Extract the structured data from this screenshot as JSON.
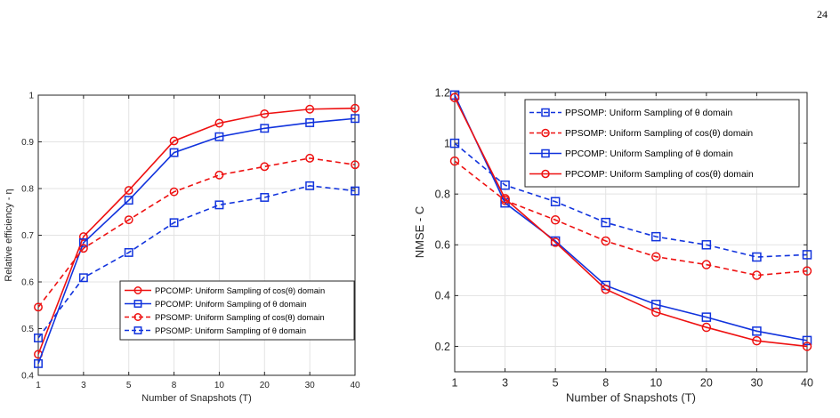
{
  "page_number": "24",
  "colors": {
    "red": "#ee1111",
    "blue": "#1133dd",
    "grid": "#e3e3e3",
    "axis": "#262626"
  },
  "chart_data": [
    {
      "type": "line",
      "categories": [
        "1",
        "3",
        "5",
        "8",
        "10",
        "20",
        "30",
        "40"
      ],
      "xlabel": "Number of Snapshots (T)",
      "ylabel": "Relative efficiency - η",
      "ylim": [
        0.4,
        1
      ],
      "yticks": [
        "0.4",
        "0.5",
        "0.6",
        "0.7",
        "0.8",
        "0.9",
        "1"
      ],
      "grid": true,
      "legend_position": "bottom-right",
      "series": [
        {
          "name": "PPCOMP: Uniform Sampling of cos(θ) domain",
          "color": "#ee1111",
          "dashed": false,
          "marker": "circle",
          "values": [
            0.445,
            0.697,
            0.796,
            0.902,
            0.94,
            0.96,
            0.97,
            0.972
          ]
        },
        {
          "name": "PPCOMP: Uniform Sampling of θ domain",
          "color": "#1133dd",
          "dashed": false,
          "marker": "square",
          "values": [
            0.425,
            0.684,
            0.775,
            0.877,
            0.911,
            0.929,
            0.941,
            0.95
          ]
        },
        {
          "name": "PPSOMP: Uniform Sampling of cos(θ) domain",
          "color": "#ee1111",
          "dashed": true,
          "marker": "circle",
          "values": [
            0.546,
            0.672,
            0.733,
            0.793,
            0.829,
            0.847,
            0.865,
            0.851
          ]
        },
        {
          "name": "PPSOMP: Uniform Sampling of θ domain",
          "color": "#1133dd",
          "dashed": true,
          "marker": "square",
          "values": [
            0.48,
            0.609,
            0.663,
            0.727,
            0.765,
            0.781,
            0.806,
            0.795
          ]
        }
      ]
    },
    {
      "type": "line",
      "categories": [
        "1",
        "3",
        "5",
        "8",
        "10",
        "20",
        "30",
        "40"
      ],
      "xlabel": "Number of Snapshots (T)",
      "ylabel": "NMSE - C",
      "ylim": [
        0.1,
        1.2
      ],
      "yticks": [
        "0.2",
        "0.4",
        "0.6",
        "0.8",
        "1",
        "1.2"
      ],
      "grid": true,
      "legend_position": "top-right",
      "series": [
        {
          "name": "PPSOMP: Uniform Sampling of θ domain",
          "color": "#1133dd",
          "dashed": true,
          "marker": "square",
          "values": [
            1.0,
            0.835,
            0.77,
            0.688,
            0.632,
            0.6,
            0.552,
            0.561
          ]
        },
        {
          "name": "PPSOMP: Uniform Sampling of cos(θ) domain",
          "color": "#ee1111",
          "dashed": true,
          "marker": "circle",
          "values": [
            0.93,
            0.775,
            0.698,
            0.615,
            0.553,
            0.522,
            0.48,
            0.497
          ]
        },
        {
          "name": "PPCOMP: Uniform Sampling of θ domain",
          "color": "#1133dd",
          "dashed": false,
          "marker": "square",
          "values": [
            1.19,
            0.765,
            0.615,
            0.44,
            0.365,
            0.315,
            0.26,
            0.223
          ]
        },
        {
          "name": "PPCOMP: Uniform Sampling of cos(θ) domain",
          "color": "#ee1111",
          "dashed": false,
          "marker": "circle",
          "values": [
            1.18,
            0.782,
            0.61,
            0.425,
            0.335,
            0.275,
            0.222,
            0.2
          ]
        }
      ]
    }
  ]
}
